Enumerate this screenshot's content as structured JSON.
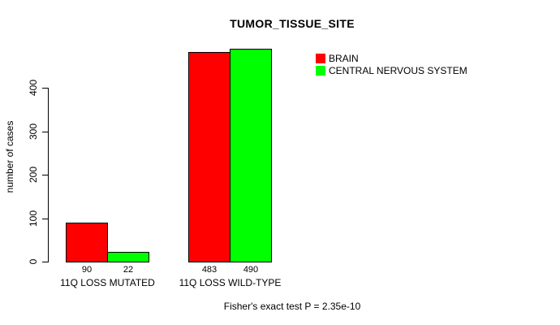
{
  "chart_data": {
    "type": "bar",
    "title": "TUMOR_TISSUE_SITE",
    "ylabel": "number of cases",
    "xlabel": "",
    "caption": "Fisher's exact test P = 2.35e-10",
    "categories": [
      "11Q LOSS MUTATED",
      "11Q LOSS WILD-TYPE"
    ],
    "series": [
      {
        "name": "BRAIN",
        "color": "#ff0000",
        "values": [
          90,
          483
        ]
      },
      {
        "name": "CENTRAL NERVOUS SYSTEM",
        "color": "#00ff00",
        "values": [
          22,
          490
        ]
      }
    ],
    "yticks": [
      0,
      100,
      200,
      300,
      400
    ],
    "ylim": [
      0,
      400
    ],
    "grid": false,
    "legend_position": "top-right",
    "bar_borders": "#000000",
    "background": "#ffffff"
  }
}
